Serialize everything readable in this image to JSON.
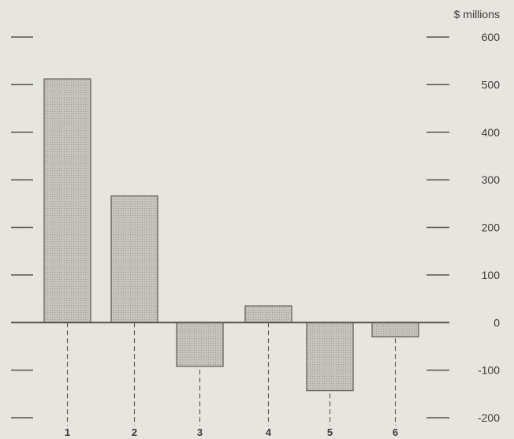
{
  "chart_data": {
    "type": "bar",
    "categories": [
      "1",
      "2",
      "3",
      "4",
      "5",
      "6"
    ],
    "values": [
      512,
      266,
      -92,
      35,
      -143,
      -30
    ],
    "unit_label": "$ millions",
    "y_ticks": [
      600,
      500,
      400,
      300,
      200,
      100,
      0,
      -100,
      -200
    ],
    "ylim": [
      -200,
      600
    ],
    "grid": false,
    "colors": {
      "bar_fill": "#bdbcb5",
      "bar_stroke": "#6b6b66",
      "axis": "#555550",
      "background": "#e6e5df"
    }
  }
}
